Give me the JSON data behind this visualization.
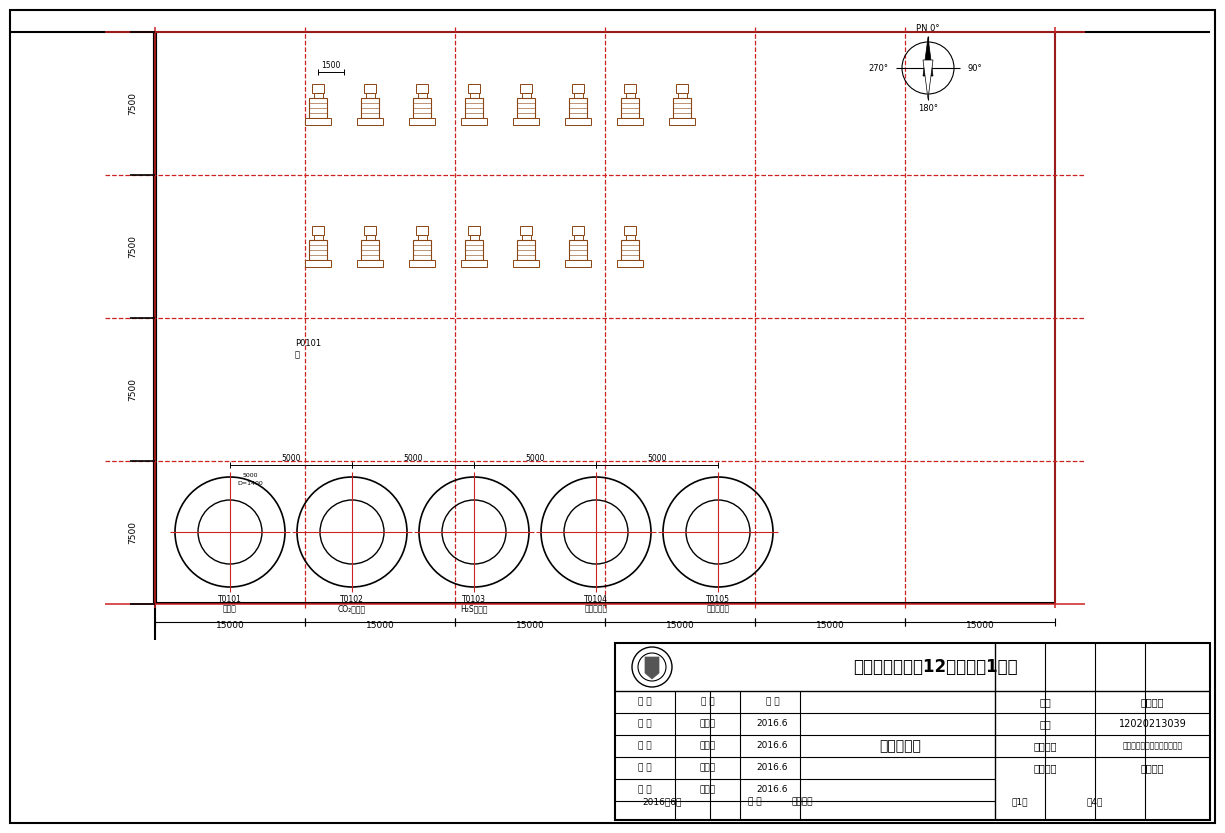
{
  "bg_color": "#ffffff",
  "black": "#000000",
  "red": "#cc2222",
  "brown": "#8B4513",
  "gray_light": "#f5f5f5",
  "title_text": "合肥学院化工系12级化工（1）班",
  "drawing_title": "厂房布置图",
  "tower_labels_line1": [
    "T0101",
    "T0102",
    "T0103",
    "T0104",
    "T0105"
  ],
  "tower_labels_line2": [
    "脱硫塔",
    "CO₂解析塔",
    "H₂S提提塔",
    "甲醇再生塔",
    "甲醇储储塔"
  ],
  "pump_label_line1": "P0101",
  "pump_label_line2": "泵",
  "dim_h_label": "15000",
  "dim_v_label": "7500",
  "dim_spacing_label": "5000",
  "dim_1500_label": "1500",
  "compass_label_n": "PN 0°",
  "compass_label_e": "90°",
  "compass_label_w": "270°",
  "compass_label_s": "180°",
  "tb_school": "合肥学院化工系12级化工（1）班",
  "tb_drawing_name": "厂房布置图",
  "tb_name_label": "姓名",
  "tb_name_val": "学生姓名",
  "tb_id_label": "学号",
  "tb_id_val": "12020213039",
  "tb_proj_label": "设计项目",
  "tb_proj_val": "低温甲醇洗酸性气硫回收设计",
  "tb_stage_label": "设计阶段",
  "tb_stage_val": "初步设计",
  "tb_resp_header": [
    "职 责",
    "姓 字",
    "日 期"
  ],
  "tb_rows": [
    [
      "设 计",
      "学生姓",
      "2016.6"
    ],
    [
      "制 图",
      "学生姓",
      "2016.6"
    ],
    [
      "校 核",
      "学生姓",
      "2016.6"
    ],
    [
      "审 核",
      "学生姓",
      "2016.6"
    ]
  ],
  "tb_bottom_date": "2016年6月",
  "tb_bottom_scale_label": "比 例",
  "tb_bottom_scale_val": "不按比例",
  "tb_bottom_sheet": "第1张",
  "tb_bottom_total": "共4张"
}
